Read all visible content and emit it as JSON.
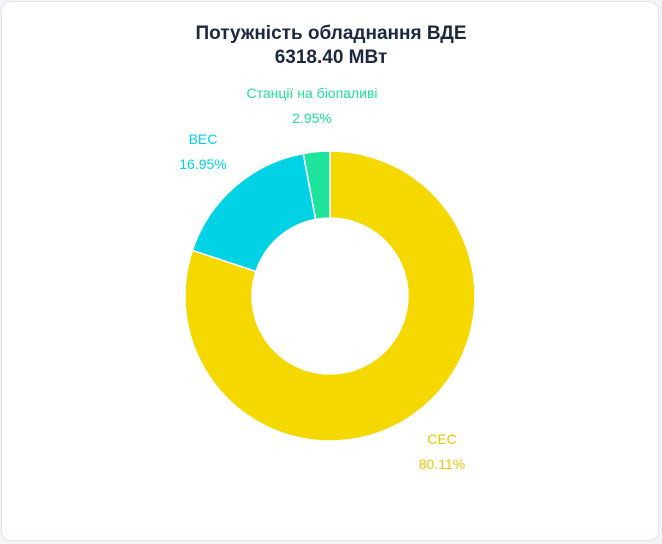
{
  "chart_data": {
    "type": "pie",
    "title": "Потужність обладнання ВДЕ",
    "subtitle": "6318.40 МВт",
    "donut": true,
    "slices": [
      {
        "label": "СЕС",
        "value": 80.11,
        "value_text": "80.11%",
        "color": "#f5d800"
      },
      {
        "label": "ВЕС",
        "value": 16.95,
        "value_text": "16.95%",
        "color": "#00d2e6"
      },
      {
        "label": "Станції на біопаливі",
        "value": 2.95,
        "value_text": "2.95%",
        "color": "#1de39b"
      }
    ]
  }
}
